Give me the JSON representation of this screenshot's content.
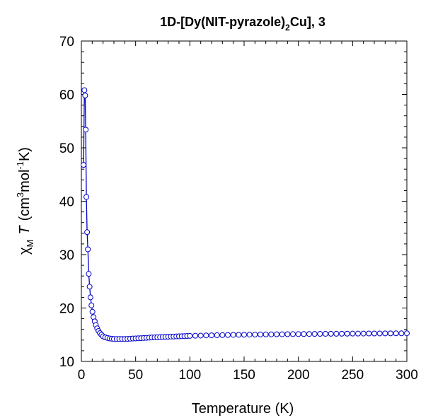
{
  "chart_data": {
    "type": "scatter",
    "title": {
      "prefix": "1D-[Dy(NIT-pyrazole)",
      "subscript": "2",
      "suffix": "Cu], 3"
    },
    "xlabel": "Temperature (K)",
    "ylabel": {
      "chi": "χ",
      "chi_sub": "M",
      "t": "T",
      "open": "(cm",
      "sup3": "3",
      "mol": "mol",
      "supm1": "-1",
      "close": "K)"
    },
    "xlim": [
      0,
      300
    ],
    "ylim": [
      10,
      70
    ],
    "x_ticks": [
      "0",
      "50",
      "100",
      "150",
      "200",
      "250",
      "300"
    ],
    "y_ticks": [
      "10",
      "20",
      "30",
      "40",
      "50",
      "60",
      "70"
    ],
    "grid": false,
    "marker": "open-circle",
    "connected": true,
    "color": "#0000c8",
    "series": [
      {
        "x": [
          2,
          2.8,
          3.5,
          4,
          4.6,
          5.3,
          6,
          6.8,
          7.6,
          8.4,
          9.3,
          10.2,
          11.2,
          12.3,
          13.4,
          14.6,
          15.8,
          17.1,
          18.5,
          20,
          22,
          24,
          26,
          28,
          30,
          32.5,
          35,
          37.5,
          40,
          42.5,
          45,
          47.5,
          50,
          52.5,
          55,
          57.5,
          60,
          62.5,
          65,
          67.5,
          70,
          72.5,
          75,
          77.5,
          80,
          82.5,
          85,
          87.5,
          90,
          92.5,
          95,
          97.5,
          100,
          105,
          110,
          115,
          120,
          125,
          130,
          135,
          140,
          145,
          150,
          155,
          160,
          165,
          170,
          175,
          180,
          185,
          190,
          195,
          200,
          205,
          210,
          215,
          220,
          225,
          230,
          235,
          240,
          245,
          250,
          255,
          260,
          265,
          270,
          275,
          280,
          285,
          290,
          295,
          300
        ],
        "y": [
          46.8,
          60.8,
          59.8,
          53.4,
          40.8,
          34.2,
          31.0,
          26.4,
          24.0,
          22.0,
          20.5,
          19.3,
          18.3,
          17.5,
          16.8,
          16.2,
          15.7,
          15.3,
          15.0,
          14.7,
          14.5,
          14.4,
          14.3,
          14.25,
          14.2,
          14.2,
          14.2,
          14.2,
          14.2,
          14.22,
          14.25,
          14.28,
          14.3,
          14.33,
          14.36,
          14.39,
          14.42,
          14.45,
          14.48,
          14.5,
          14.52,
          14.55,
          14.57,
          14.6,
          14.62,
          14.64,
          14.66,
          14.68,
          14.7,
          14.72,
          14.74,
          14.76,
          14.78,
          14.81,
          14.84,
          14.87,
          14.89,
          14.91,
          14.93,
          14.95,
          14.97,
          14.99,
          15.0,
          15.02,
          15.03,
          15.05,
          15.06,
          15.07,
          15.08,
          15.09,
          15.1,
          15.11,
          15.12,
          15.13,
          15.14,
          15.15,
          15.16,
          15.17,
          15.18,
          15.18,
          15.19,
          15.2,
          15.21,
          15.21,
          15.22,
          15.23,
          15.23,
          15.24,
          15.25,
          15.25,
          15.26,
          15.26,
          15.27
        ]
      }
    ]
  }
}
